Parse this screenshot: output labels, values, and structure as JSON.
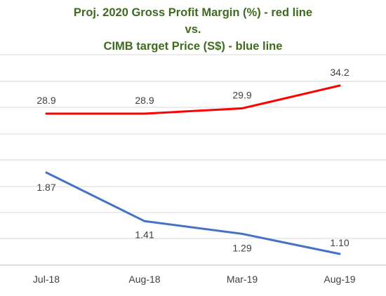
{
  "chart_data": {
    "type": "line",
    "title_lines": [
      "Proj. 2020 Gross Profit Margin (%) - red line",
      "vs.",
      "CIMB target Price (S$) - blue line"
    ],
    "categories": [
      "Jul-18",
      "Aug-18",
      "Mar-19",
      "Aug-19"
    ],
    "series": [
      {
        "values": [
          28.9,
          28.9,
          29.9,
          34.2
        ],
        "labels": [
          "28.9",
          "28.9",
          "29.9",
          "34.2"
        ],
        "color": "#ff0000"
      },
      {
        "values": [
          1.87,
          1.41,
          1.29,
          1.1
        ],
        "labels": [
          "1.87",
          "1.41",
          "1.29",
          "1.10"
        ],
        "color": "#4472c4"
      }
    ],
    "grid": true,
    "legend": "none"
  }
}
